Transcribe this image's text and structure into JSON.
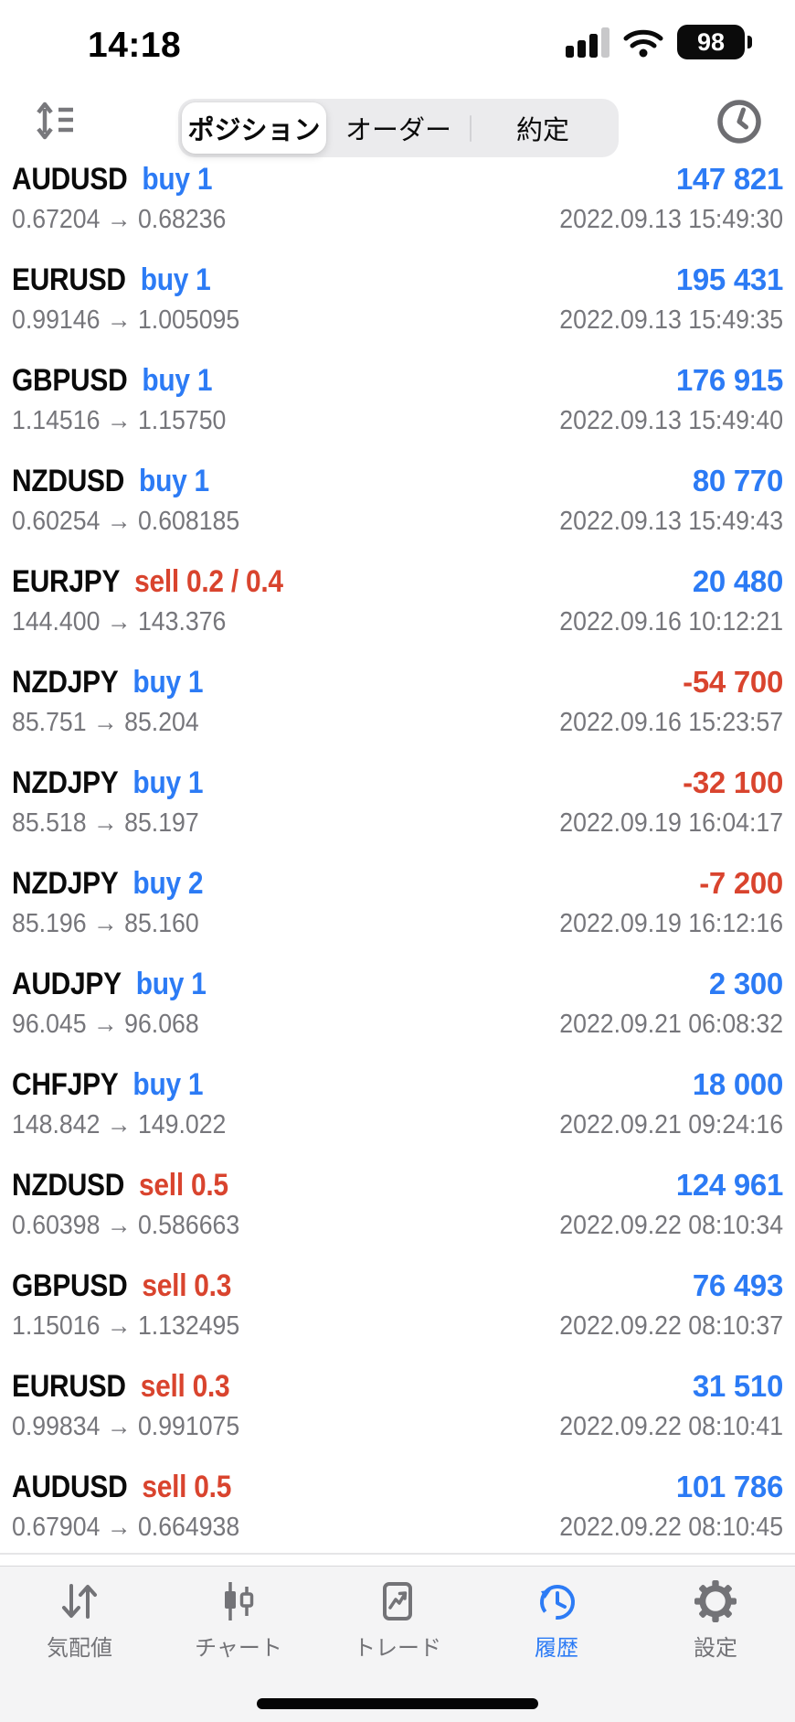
{
  "colors": {
    "accent_blue": "#2c7bf5",
    "sell_red": "#d9442e",
    "muted_gray": "#76767b"
  },
  "status_bar": {
    "time": "14:18",
    "battery_percent": "98"
  },
  "header": {
    "segments": [
      {
        "label": "ポジション",
        "selected": true
      },
      {
        "label": "オーダー",
        "selected": false
      },
      {
        "label": "約定",
        "selected": false
      }
    ],
    "sort_icon": "sort-list-icon",
    "history_icon": "clock-icon"
  },
  "trades": [
    {
      "symbol": "AUDUSD",
      "side": "buy",
      "volume": "1",
      "profit": "147 821",
      "prices": "0.67204 → 0.68236",
      "time": "2022.09.13 15:49:30"
    },
    {
      "symbol": "EURUSD",
      "side": "buy",
      "volume": "1",
      "profit": "195 431",
      "prices": "0.99146 → 1.005095",
      "time": "2022.09.13 15:49:35"
    },
    {
      "symbol": "GBPUSD",
      "side": "buy",
      "volume": "1",
      "profit": "176 915",
      "prices": "1.14516 → 1.15750",
      "time": "2022.09.13 15:49:40"
    },
    {
      "symbol": "NZDUSD",
      "side": "buy",
      "volume": "1",
      "profit": "80 770",
      "prices": "0.60254 → 0.608185",
      "time": "2022.09.13 15:49:43"
    },
    {
      "symbol": "EURJPY",
      "side": "sell",
      "volume": "0.2 / 0.4",
      "profit": "20 480",
      "prices": "144.400 → 143.376",
      "time": "2022.09.16 10:12:21"
    },
    {
      "symbol": "NZDJPY",
      "side": "buy",
      "volume": "1",
      "profit": "-54 700",
      "prices": "85.751 → 85.204",
      "time": "2022.09.16 15:23:57"
    },
    {
      "symbol": "NZDJPY",
      "side": "buy",
      "volume": "1",
      "profit": "-32 100",
      "prices": "85.518 → 85.197",
      "time": "2022.09.19 16:04:17"
    },
    {
      "symbol": "NZDJPY",
      "side": "buy",
      "volume": "2",
      "profit": "-7 200",
      "prices": "85.196 → 85.160",
      "time": "2022.09.19 16:12:16"
    },
    {
      "symbol": "AUDJPY",
      "side": "buy",
      "volume": "1",
      "profit": "2 300",
      "prices": "96.045 → 96.068",
      "time": "2022.09.21 06:08:32"
    },
    {
      "symbol": "CHFJPY",
      "side": "buy",
      "volume": "1",
      "profit": "18 000",
      "prices": "148.842 → 149.022",
      "time": "2022.09.21 09:24:16"
    },
    {
      "symbol": "NZDUSD",
      "side": "sell",
      "volume": "0.5",
      "profit": "124 961",
      "prices": "0.60398 → 0.586663",
      "time": "2022.09.22 08:10:34"
    },
    {
      "symbol": "GBPUSD",
      "side": "sell",
      "volume": "0.3",
      "profit": "76 493",
      "prices": "1.15016 → 1.132495",
      "time": "2022.09.22 08:10:37"
    },
    {
      "symbol": "EURUSD",
      "side": "sell",
      "volume": "0.3",
      "profit": "31 510",
      "prices": "0.99834 → 0.991075",
      "time": "2022.09.22 08:10:41"
    },
    {
      "symbol": "AUDUSD",
      "side": "sell",
      "volume": "0.5",
      "profit": "101 786",
      "prices": "0.67904 → 0.664938",
      "time": "2022.09.22 08:10:45"
    }
  ],
  "tab_bar": {
    "items": [
      {
        "label": "気配値",
        "icon": "quotes-arrows-icon",
        "active": false
      },
      {
        "label": "チャート",
        "icon": "candlestick-chart-icon",
        "active": false
      },
      {
        "label": "トレード",
        "icon": "trade-chart-icon",
        "active": false
      },
      {
        "label": "履歴",
        "icon": "history-clock-icon",
        "active": true
      },
      {
        "label": "設定",
        "icon": "settings-gear-icon",
        "active": false
      }
    ]
  }
}
